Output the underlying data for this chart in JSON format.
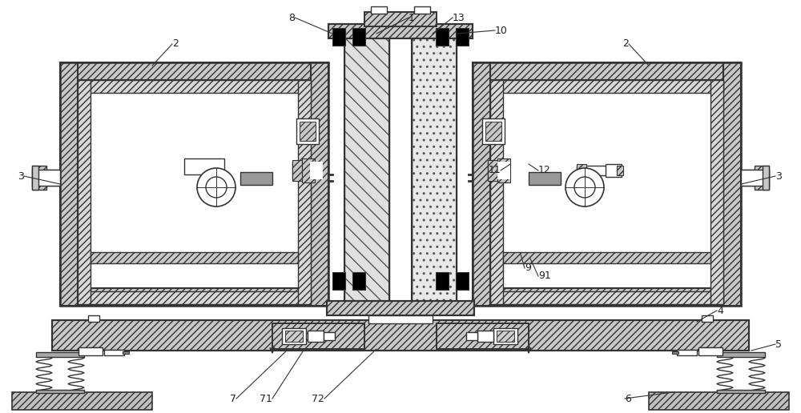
{
  "bg": "#ffffff",
  "lc": "#333333",
  "figsize": [
    10.0,
    5.16
  ],
  "dpi": 100
}
